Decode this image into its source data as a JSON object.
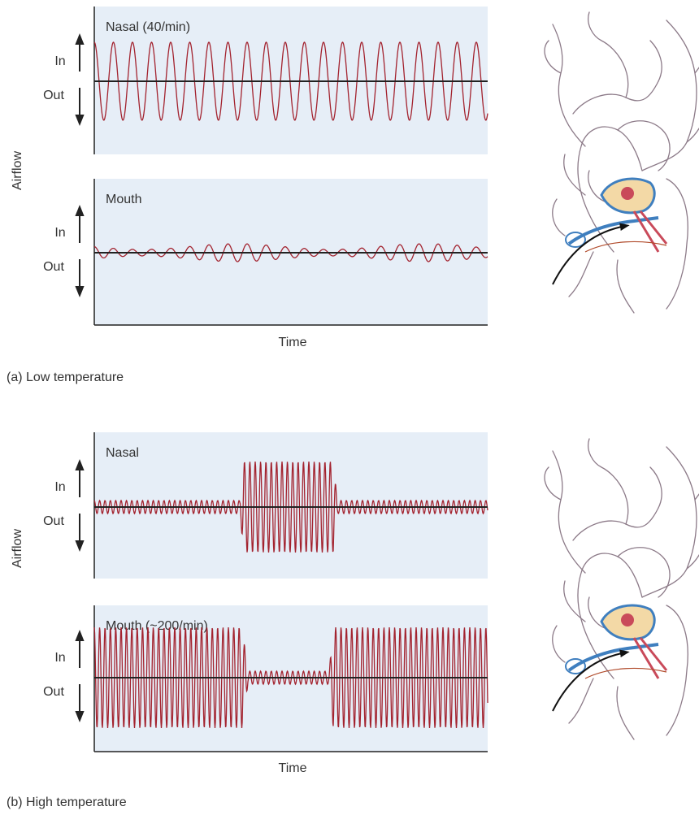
{
  "panels": [
    {
      "label": "(a)",
      "caption": "Low temperature",
      "y_axis_label": "Airflow",
      "x_axis_label": "Time",
      "plots": [
        {
          "title": "Nasal (40/min)",
          "in_label": "In",
          "out_label": "Out"
        },
        {
          "title": "Mouth",
          "in_label": "In",
          "out_label": "Out"
        }
      ]
    },
    {
      "label": "(b)",
      "caption": "High temperature",
      "y_axis_label": "Airflow",
      "x_axis_label": "Time",
      "plots": [
        {
          "title": "Nasal",
          "in_label": "In",
          "out_label": "Out"
        },
        {
          "title": "Mouth (~200/min)",
          "in_label": "In",
          "out_label": "Out"
        }
      ]
    }
  ]
}
